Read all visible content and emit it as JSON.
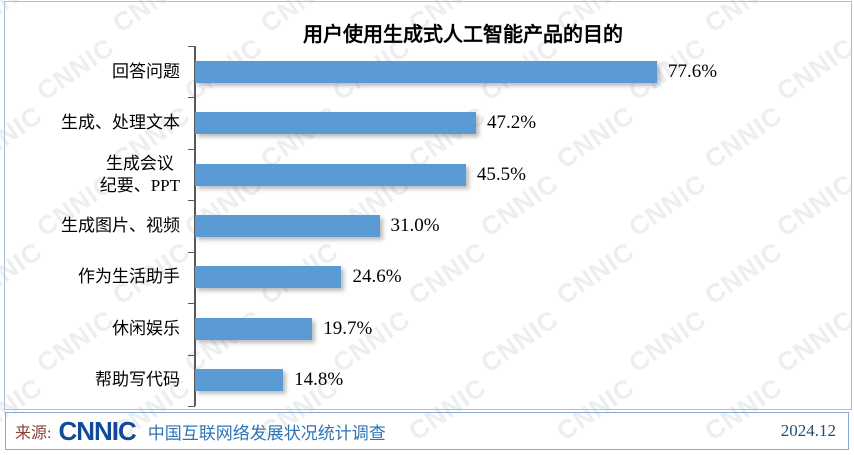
{
  "watermark": {
    "text": "CNNIC"
  },
  "chart_data": {
    "type": "bar",
    "orientation": "horizontal",
    "title": "用户使用生成式人工智能产品的目的",
    "categories": [
      "回答问题",
      "生成、处理文本",
      "生成会议\n纪要、PPT",
      "生成图片、视频",
      "作为生活助手",
      "休闲娱乐",
      "帮助写代码"
    ],
    "values": [
      77.6,
      47.2,
      45.5,
      31.0,
      24.6,
      19.7,
      14.8
    ],
    "value_labels": [
      "77.6%",
      "47.2%",
      "45.5%",
      "31.0%",
      "24.6%",
      "19.7%",
      "14.8%"
    ],
    "xlabel": "",
    "ylabel": "",
    "bar_color": "#5B9BD5",
    "grid": false,
    "legend": false
  },
  "footer": {
    "source_label": "来源:",
    "logo_text": "CNNIC",
    "survey_name": "中国互联网络发展状况统计调查",
    "date": "2024.12"
  },
  "colors": {
    "bar": "#5B9BD5",
    "axis": "#595959",
    "source_label": "#8B4137",
    "survey_text": "#2E74B5",
    "date_text": "#1F4E79",
    "logo": "#11499B"
  }
}
